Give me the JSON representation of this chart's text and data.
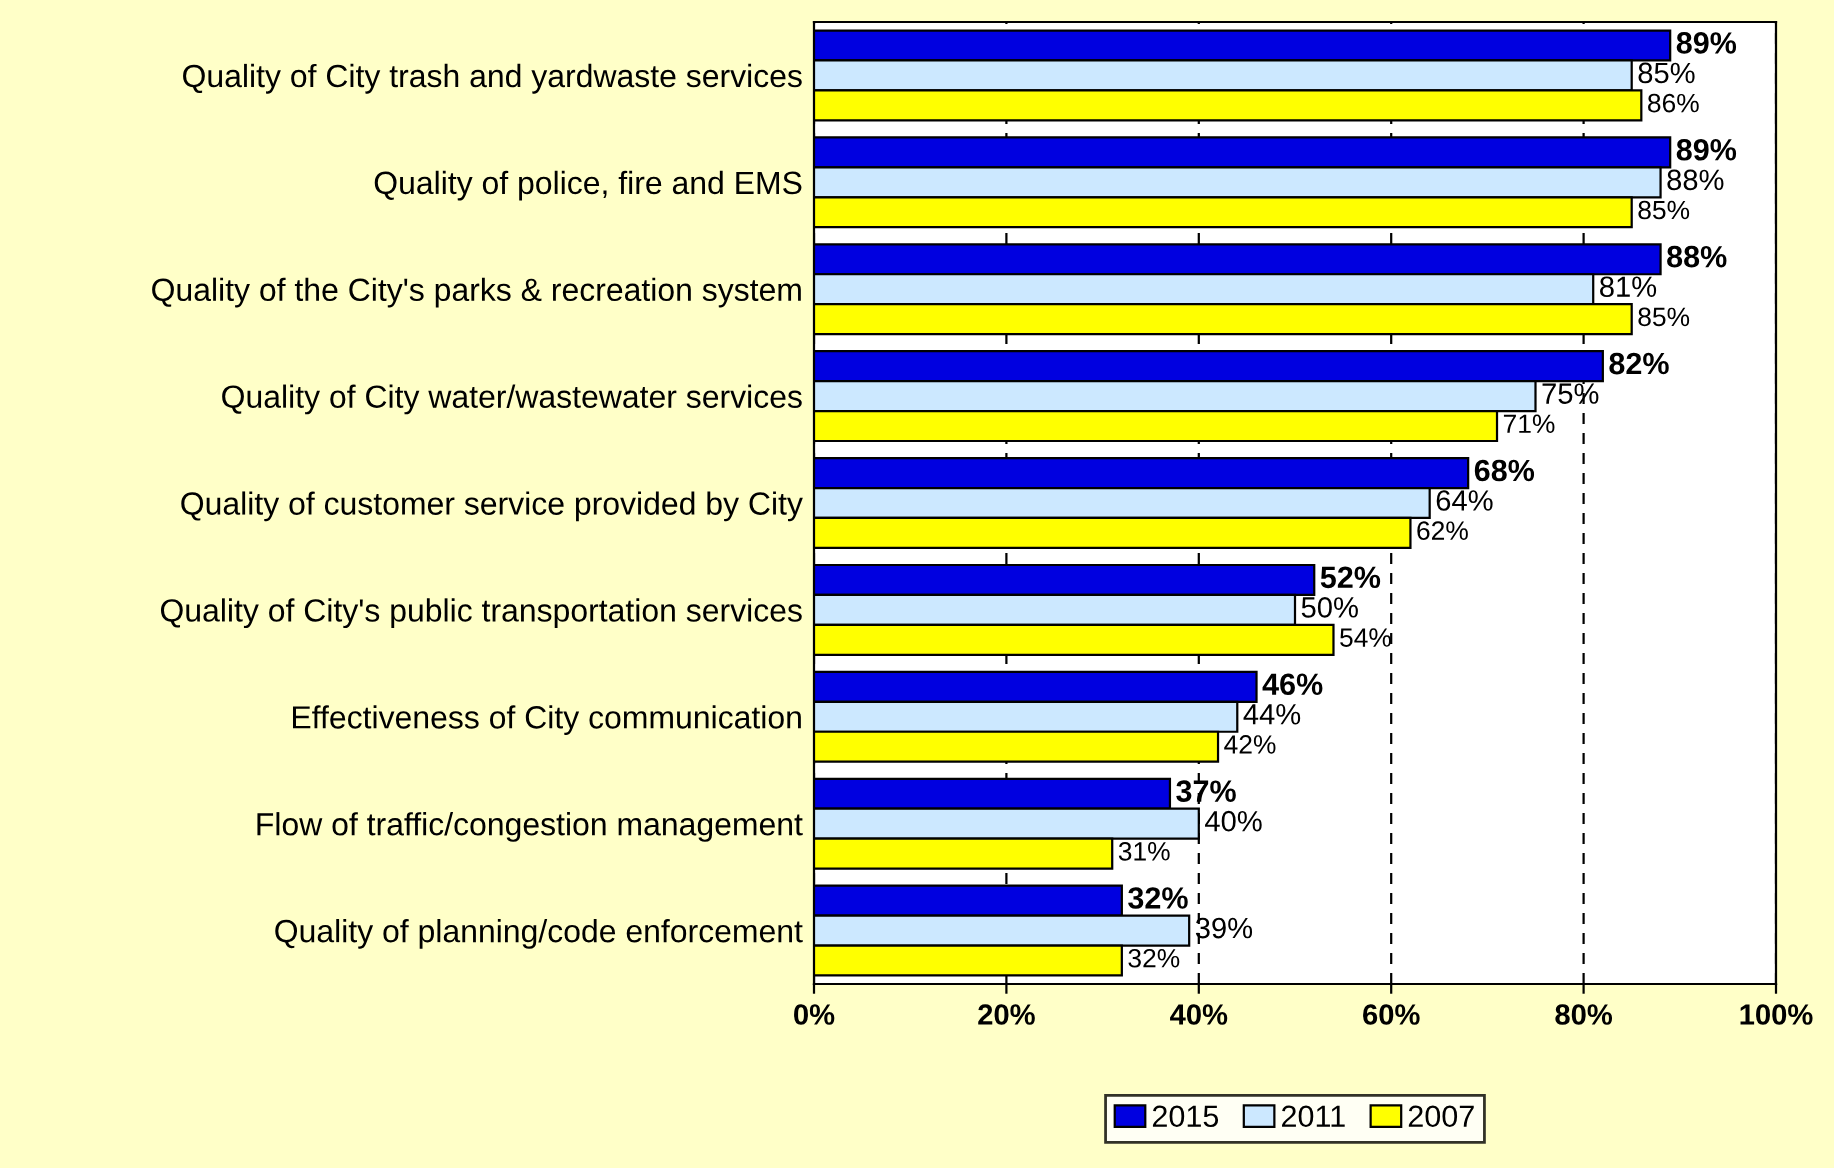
{
  "chart_data": {
    "type": "bar",
    "orientation": "horizontal",
    "categories": [
      "Quality of City trash and yardwaste services",
      "Quality of police, fire and EMS",
      "Quality of the City's parks & recreation system",
      "Quality of City water/wastewater services",
      "Quality of customer service provided by City",
      "Quality of City's public transportation services",
      "Effectiveness of City communication",
      "Flow of traffic/congestion management",
      "Quality of planning/code enforcement"
    ],
    "series": [
      {
        "name": "2015",
        "color": "#0000e0",
        "values": [
          89,
          89,
          88,
          82,
          68,
          52,
          46,
          37,
          32
        ],
        "value_labels": [
          "89%",
          "89%",
          "88%",
          "82%",
          "68%",
          "52%",
          "46%",
          "37%",
          "32%"
        ]
      },
      {
        "name": "2011",
        "color": "#cce8ff",
        "values": [
          85,
          88,
          81,
          75,
          64,
          50,
          44,
          40,
          39
        ],
        "value_labels": [
          "85%",
          "88%",
          "81%",
          "75%",
          "64%",
          "50%",
          "44%",
          "40%",
          "39%"
        ]
      },
      {
        "name": "2007",
        "color": "#ffff00",
        "values": [
          86,
          85,
          85,
          71,
          62,
          54,
          42,
          31,
          32
        ],
        "value_labels": [
          "86%",
          "85%",
          "85%",
          "71%",
          "62%",
          "54%",
          "42%",
          "31%",
          "32%"
        ]
      }
    ],
    "xlim": [
      0,
      100
    ],
    "xticks": [
      {
        "value": 0,
        "label": "0%"
      },
      {
        "value": 20,
        "label": "20%"
      },
      {
        "value": 40,
        "label": "40%"
      },
      {
        "value": 60,
        "label": "60%"
      },
      {
        "value": 80,
        "label": "80%"
      },
      {
        "value": 100,
        "label": "100%"
      }
    ],
    "grid": "x",
    "line_style": "dashed",
    "legend": "bottom"
  }
}
